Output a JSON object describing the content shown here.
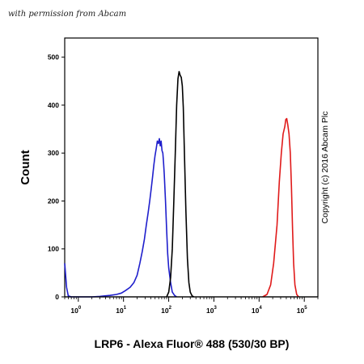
{
  "watermark": "with permission from Abcam",
  "copyright": "Copyright (c) 2016 Abcam Plc",
  "chart_data": {
    "type": "line",
    "title": "",
    "xlabel": "LRP6 - Alexa Fluor® 488 (530/30 BP)",
    "ylabel": "Count",
    "xscale": "log",
    "xlim": [
      0.5,
      200000
    ],
    "ylim": [
      0,
      540
    ],
    "yticks": [
      0,
      100,
      200,
      300,
      400,
      500
    ],
    "xticks": [
      {
        "base": "10",
        "exp": "0",
        "value": 1
      },
      {
        "base": "10",
        "exp": "1",
        "value": 10
      },
      {
        "base": "10",
        "exp": "2",
        "value": 100
      },
      {
        "base": "10",
        "exp": "3",
        "value": 1000
      },
      {
        "base": "10",
        "exp": "4",
        "value": 10000
      },
      {
        "base": "10",
        "exp": "5",
        "value": 100000
      }
    ],
    "grid": false,
    "series": [
      {
        "color": "#1f1fcc",
        "x": [
          0.5,
          0.55,
          0.6,
          0.7,
          1,
          2,
          3,
          5,
          7,
          9,
          11,
          14,
          17,
          20,
          23,
          26,
          29,
          32,
          35,
          38,
          41,
          44,
          47,
          50,
          53,
          56,
          59,
          62,
          65,
          68,
          71,
          74,
          77,
          80,
          85,
          90,
          95,
          100,
          110,
          120,
          135,
          150
        ],
        "y": [
          70,
          20,
          2,
          0,
          0,
          0,
          1,
          3,
          5,
          8,
          13,
          20,
          30,
          45,
          70,
          95,
          120,
          150,
          175,
          200,
          225,
          250,
          275,
          295,
          310,
          325,
          320,
          330,
          315,
          325,
          305,
          300,
          280,
          255,
          200,
          140,
          90,
          60,
          30,
          10,
          3,
          0
        ]
      },
      {
        "color": "#000000",
        "x": [
          90,
          100,
          110,
          120,
          130,
          140,
          150,
          160,
          170,
          180,
          190,
          200,
          210,
          220,
          240,
          260,
          280,
          300,
          330,
          360
        ],
        "y": [
          0,
          10,
          40,
          100,
          200,
          300,
          400,
          455,
          470,
          462,
          458,
          440,
          395,
          320,
          180,
          80,
          30,
          10,
          2,
          0
        ]
      },
      {
        "color": "#e01a1a",
        "x": [
          12000,
          15000,
          18000,
          21000,
          25000,
          28000,
          31000,
          34000,
          37000,
          39000,
          41000,
          43000,
          46000,
          49000,
          52000,
          55000,
          58000,
          62000,
          68000,
          75000
        ],
        "y": [
          0,
          5,
          25,
          70,
          150,
          240,
          300,
          340,
          355,
          370,
          372,
          360,
          340,
          300,
          230,
          140,
          70,
          25,
          5,
          0
        ]
      }
    ]
  }
}
